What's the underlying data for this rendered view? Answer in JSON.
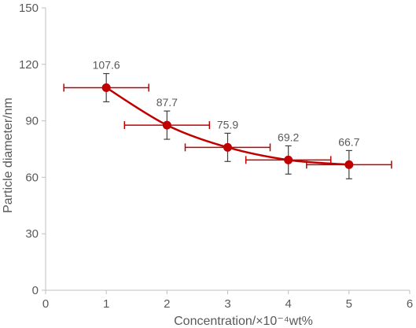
{
  "chart_data": {
    "type": "scatter",
    "title": "",
    "xlabel": "Concentration/×10⁻⁴wt%",
    "ylabel": "Particle diameter/nm",
    "xlim": [
      0,
      6
    ],
    "ylim": [
      0,
      150
    ],
    "x_ticks": [
      0,
      1,
      2,
      3,
      4,
      5,
      6
    ],
    "y_ticks": [
      0,
      30,
      60,
      90,
      120,
      150
    ],
    "grid": false,
    "legend": "none",
    "series": [
      {
        "x": [
          1,
          2,
          3,
          4,
          5
        ],
        "y": [
          107.6,
          87.7,
          75.9,
          69.2,
          66.7
        ],
        "data_labels": [
          "107.6",
          "87.7",
          "75.9",
          "69.2",
          "66.7"
        ],
        "x_error": [
          0.7,
          0.7,
          0.7,
          0.7,
          0.7
        ],
        "y_error": [
          7.5,
          7.5,
          7.5,
          7.5,
          7.5
        ],
        "line": "smoothed",
        "color": "#c00000"
      }
    ],
    "colors": {
      "series": "#c00000",
      "error_bars_x": "#c00000",
      "error_bars_y": "#404040",
      "axis": "#bfbfbf",
      "text": "#595959"
    }
  }
}
